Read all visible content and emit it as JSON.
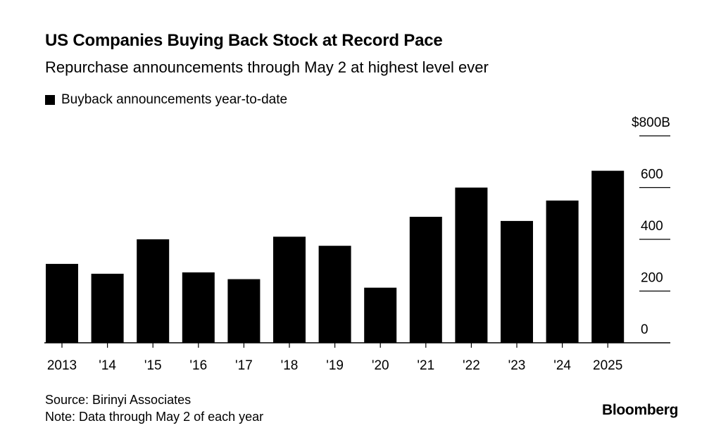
{
  "title": "US Companies Buying Back Stock at Record Pace",
  "subtitle": "Repurchase announcements through May 2 at highest level ever",
  "legend": {
    "label": "Buyback announcements year-to-date"
  },
  "footer": {
    "source": "Source: Birinyi Associates",
    "note": "Note: Data through May 2 of each year"
  },
  "brand": "Bloomberg",
  "chart_data": {
    "type": "bar",
    "categories": [
      "2013",
      "'14",
      "'15",
      "'16",
      "'17",
      "'18",
      "'19",
      "'20",
      "'21",
      "'22",
      "'23",
      "'24",
      "2025"
    ],
    "series": [
      {
        "name": "Buyback announcements year-to-date",
        "values": [
          305,
          267,
          400,
          272,
          246,
          410,
          375,
          213,
          487,
          600,
          471,
          550,
          665
        ],
        "color": "#000000"
      }
    ],
    "y_ticks": [
      0,
      200,
      400,
      600,
      800
    ],
    "y_tick_labels": [
      "0",
      "200",
      "400",
      "600",
      "$800B"
    ],
    "ylim": [
      0,
      800
    ],
    "y_axis_side": "right",
    "grid": false
  }
}
